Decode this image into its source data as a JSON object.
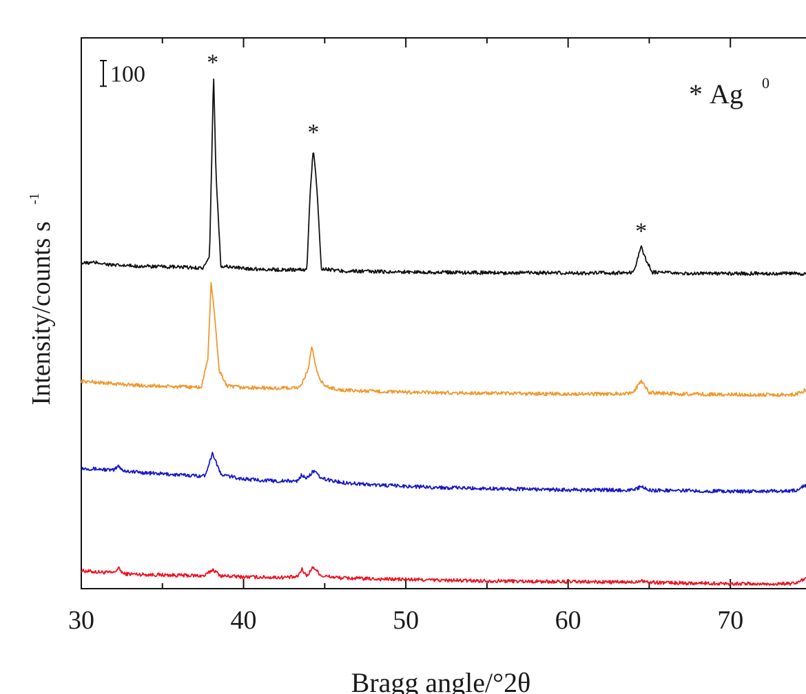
{
  "chart_data": {
    "type": "line",
    "title": "",
    "xlabel": "Bragg angle/°2θ",
    "ylabel": "Intensity/counts s",
    "ylabel_superscript": "-1",
    "xlim": [
      30,
      75
    ],
    "xticks": [
      30,
      40,
      50,
      60,
      70
    ],
    "xtick_labels": [
      "30",
      "40",
      "50",
      "60",
      "70"
    ],
    "ylim": [
      0,
      2150
    ],
    "yticks_shown": false,
    "scale_bar": {
      "label": "100",
      "value": 100
    },
    "legend": {
      "marker": "*",
      "text": "Ag",
      "superscript": "0",
      "position": "top-right"
    },
    "peak_marker": "*",
    "peak_markers_at": [
      38.1,
      44.3,
      64.5
    ],
    "series": [
      {
        "color": "#f01020",
        "points": [
          [
            30,
            70
          ],
          [
            31,
            65
          ],
          [
            32,
            62
          ],
          [
            32.3,
            80
          ],
          [
            32.6,
            58
          ],
          [
            34,
            55
          ],
          [
            36,
            52
          ],
          [
            37.6,
            50
          ],
          [
            38.1,
            75
          ],
          [
            38.6,
            50
          ],
          [
            40,
            46
          ],
          [
            42,
            44
          ],
          [
            43.3,
            45
          ],
          [
            43.6,
            75
          ],
          [
            43.9,
            50
          ],
          [
            44.3,
            85
          ],
          [
            44.8,
            50
          ],
          [
            46,
            42
          ],
          [
            48,
            38
          ],
          [
            50,
            36
          ],
          [
            52,
            33
          ],
          [
            54,
            31
          ],
          [
            56,
            30
          ],
          [
            58,
            28
          ],
          [
            60,
            27
          ],
          [
            62,
            26
          ],
          [
            64,
            25
          ],
          [
            64.5,
            33
          ],
          [
            65,
            25
          ],
          [
            67,
            22
          ],
          [
            70,
            20
          ],
          [
            72,
            18
          ],
          [
            74,
            20
          ],
          [
            74.6,
            40
          ],
          [
            75,
            24
          ]
        ]
      },
      {
        "color": "#1818c8",
        "points": [
          [
            30,
            470
          ],
          [
            31,
            467
          ],
          [
            32,
            462
          ],
          [
            32.3,
            480
          ],
          [
            32.6,
            460
          ],
          [
            34,
            452
          ],
          [
            36,
            444
          ],
          [
            37.6,
            440
          ],
          [
            38.1,
            530
          ],
          [
            38.6,
            445
          ],
          [
            40,
            428
          ],
          [
            42,
            420
          ],
          [
            43.3,
            420
          ],
          [
            43.6,
            445
          ],
          [
            43.9,
            430
          ],
          [
            44.3,
            460
          ],
          [
            44.8,
            430
          ],
          [
            46,
            415
          ],
          [
            48,
            405
          ],
          [
            50,
            400
          ],
          [
            52,
            395
          ],
          [
            54,
            392
          ],
          [
            56,
            390
          ],
          [
            58,
            388
          ],
          [
            60,
            385
          ],
          [
            62,
            385
          ],
          [
            64,
            385
          ],
          [
            64.5,
            398
          ],
          [
            65,
            384
          ],
          [
            67,
            383
          ],
          [
            70,
            380
          ],
          [
            72,
            380
          ],
          [
            74,
            382
          ],
          [
            74.6,
            405
          ],
          [
            75,
            385
          ]
        ]
      },
      {
        "color": "#f0982c",
        "points": [
          [
            30,
            810
          ],
          [
            31,
            805
          ],
          [
            32,
            800
          ],
          [
            34,
            792
          ],
          [
            36,
            788
          ],
          [
            37.4,
            786
          ],
          [
            37.8,
            900
          ],
          [
            38.0,
            1190
          ],
          [
            38.2,
            1080
          ],
          [
            38.5,
            850
          ],
          [
            39,
            790
          ],
          [
            40,
            785
          ],
          [
            42,
            782
          ],
          [
            43.5,
            785
          ],
          [
            44.0,
            860
          ],
          [
            44.2,
            940
          ],
          [
            44.6,
            830
          ],
          [
            45,
            790
          ],
          [
            46,
            775
          ],
          [
            48,
            770
          ],
          [
            50,
            767
          ],
          [
            52,
            765
          ],
          [
            54,
            763
          ],
          [
            56,
            762
          ],
          [
            58,
            761
          ],
          [
            60,
            760
          ],
          [
            62,
            760
          ],
          [
            64,
            763
          ],
          [
            64.5,
            812
          ],
          [
            65,
            765
          ],
          [
            67,
            760
          ],
          [
            70,
            758
          ],
          [
            72,
            757
          ],
          [
            74,
            758
          ],
          [
            74.6,
            775
          ],
          [
            75,
            760
          ]
        ]
      },
      {
        "color": "#111111",
        "points": [
          [
            30,
            1270
          ],
          [
            31,
            1273
          ],
          [
            32,
            1262
          ],
          [
            34,
            1258
          ],
          [
            36,
            1255
          ],
          [
            37.5,
            1252
          ],
          [
            37.9,
            1290
          ],
          [
            38.05,
            1700
          ],
          [
            38.15,
            2020
          ],
          [
            38.3,
            1620
          ],
          [
            38.6,
            1260
          ],
          [
            40,
            1250
          ],
          [
            42,
            1245
          ],
          [
            43.9,
            1245
          ],
          [
            44.1,
            1540
          ],
          [
            44.3,
            1720
          ],
          [
            44.5,
            1580
          ],
          [
            44.8,
            1250
          ],
          [
            46,
            1240
          ],
          [
            48,
            1238
          ],
          [
            50,
            1236
          ],
          [
            52,
            1235
          ],
          [
            54,
            1234
          ],
          [
            56,
            1233
          ],
          [
            58,
            1233
          ],
          [
            60,
            1232
          ],
          [
            62,
            1232
          ],
          [
            64,
            1233
          ],
          [
            64.3,
            1290
          ],
          [
            64.5,
            1335
          ],
          [
            64.8,
            1285
          ],
          [
            65.2,
            1235
          ],
          [
            67,
            1230
          ],
          [
            70,
            1230
          ],
          [
            72,
            1230
          ],
          [
            74,
            1230
          ],
          [
            75,
            1230
          ]
        ]
      }
    ]
  }
}
